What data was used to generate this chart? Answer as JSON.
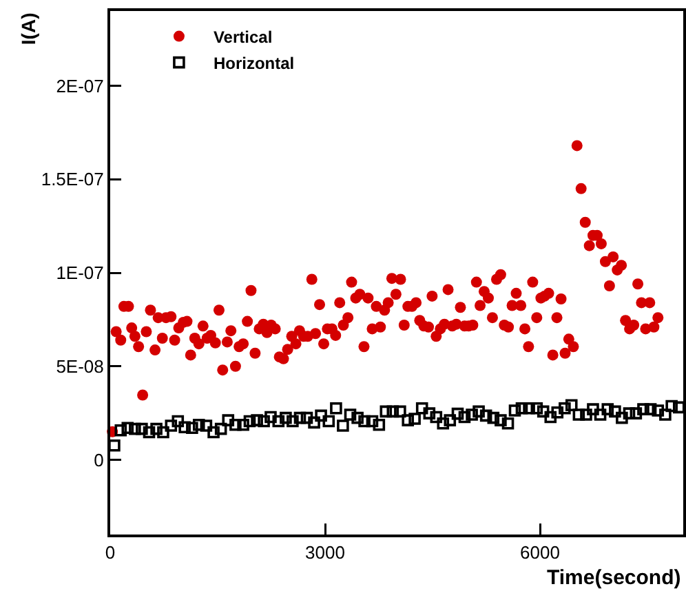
{
  "chart_data": {
    "type": "scatter",
    "xlabel": "Time(second)",
    "ylabel": "I(A)",
    "xlim": [
      0,
      8000
    ],
    "xticks": [
      0,
      3000,
      6000
    ],
    "ylim": [
      -4e-08,
      2.4e-07
    ],
    "yticks": [
      {
        "value": -4e-08,
        "label": null
      },
      0,
      {
        "value": 5e-08,
        "label": "5E-08"
      },
      {
        "value": 1e-07,
        "label": "1E-07"
      },
      {
        "value": 1.5e-07,
        "label": "1.5E-07"
      },
      {
        "value": 2e-07,
        "label": "2E-07"
      }
    ],
    "grid": false,
    "legend": "top left",
    "series": [
      {
        "name": "Vertical",
        "color": "#d40000",
        "marker": "circle",
        "x": [
          30,
          83,
          147,
          191,
          255,
          300,
          345,
          396,
          453,
          504,
          562,
          626,
          670,
          728,
          779,
          849,
          900,
          957,
          1021,
          1072,
          1123,
          1181,
          1238,
          1296,
          1353,
          1404,
          1468,
          1519,
          1570,
          1634,
          1685,
          1749,
          1800,
          1857,
          1915,
          1966,
          2023,
          2081,
          2138,
          2189,
          2247,
          2304,
          2362,
          2419,
          2477,
          2534,
          2592,
          2643,
          2700,
          2758,
          2815,
          2866,
          2923,
          2981,
          3032,
          3096,
          3147,
          3204,
          3255,
          3319,
          3370,
          3428,
          3485,
          3543,
          3600,
          3658,
          3715,
          3772,
          3830,
          3881,
          3932,
          3989,
          4053,
          4104,
          4156,
          4213,
          4270,
          4321,
          4379,
          4443,
          4494,
          4551,
          4609,
          4666,
          4717,
          4775,
          4832,
          4889,
          4947,
          5004,
          5062,
          5113,
          5164,
          5221,
          5279,
          5336,
          5394,
          5451,
          5502,
          5559,
          5611,
          5668,
          5732,
          5789,
          5840,
          5898,
          5955,
          6013,
          6064,
          6121,
          6179,
          6236,
          6294,
          6351,
          6402,
          6466,
          6517,
          6574,
          6632,
          6689,
          6740,
          6798,
          6855,
          6913,
          6970,
          7021,
          7079,
          7136,
          7194,
          7251,
          7309,
          7366,
          7417,
          7475,
          7532,
          7590,
          7647
        ],
        "values": [
          1.5e-08,
          6.85e-08,
          6.4e-08,
          8.2e-08,
          8.2e-08,
          7.05e-08,
          6.6e-08,
          6.05e-08,
          3.46e-08,
          6.85e-08,
          8e-08,
          5.87e-08,
          7.6e-08,
          6.5e-08,
          7.6e-08,
          7.65e-08,
          6.4e-08,
          7.05e-08,
          7.35e-08,
          7.4e-08,
          5.6e-08,
          6.5e-08,
          6.2e-08,
          7.15e-08,
          6.5e-08,
          6.65e-08,
          6.25e-08,
          8e-08,
          4.8e-08,
          6.3e-08,
          6.9e-08,
          5e-08,
          6.05e-08,
          6.2e-08,
          7.4e-08,
          9.05e-08,
          5.7e-08,
          7e-08,
          7.25e-08,
          6.8e-08,
          7.2e-08,
          7e-08,
          5.5e-08,
          5.4e-08,
          5.9e-08,
          6.6e-08,
          6.2e-08,
          6.9e-08,
          6.6e-08,
          6.6e-08,
          9.65e-08,
          6.75e-08,
          8.3e-08,
          6.2e-08,
          7e-08,
          7e-08,
          6.65e-08,
          8.4e-08,
          7.2e-08,
          7.6e-08,
          9.5e-08,
          8.65e-08,
          8.85e-08,
          6.05e-08,
          8.65e-08,
          7e-08,
          8.2e-08,
          7.1e-08,
          8e-08,
          8.4e-08,
          9.7e-08,
          8.85e-08,
          9.65e-08,
          7.2e-08,
          8.2e-08,
          8.2e-08,
          8.4e-08,
          7.45e-08,
          7.15e-08,
          7.1e-08,
          8.75e-08,
          6.6e-08,
          7e-08,
          7.25e-08,
          9.1e-08,
          7.15e-08,
          7.25e-08,
          8.15e-08,
          7.15e-08,
          7.15e-08,
          7.2e-08,
          9.5e-08,
          8.25e-08,
          9e-08,
          8.65e-08,
          7.6e-08,
          9.65e-08,
          9.9e-08,
          7.2e-08,
          7.1e-08,
          8.25e-08,
          8.9e-08,
          8.25e-08,
          7e-08,
          6.05e-08,
          9.5e-08,
          7.6e-08,
          8.65e-08,
          8.75e-08,
          8.9e-08,
          5.6e-08,
          7.6e-08,
          8.6e-08,
          5.7e-08,
          6.45e-08,
          6.05e-08,
          1.68e-07,
          1.45e-07,
          1.27e-07,
          1.145e-07,
          1.2e-07,
          1.2e-07,
          1.155e-07,
          1.06e-07,
          9.3e-08,
          1.085e-07,
          1.015e-07,
          1.04e-07,
          7.45e-08,
          7e-08,
          7.2e-08,
          9.4e-08,
          8.4e-08,
          7e-08,
          8.4e-08,
          7.1e-08,
          7.6e-08
        ]
      },
      {
        "name": "Horizontal",
        "color": "#000000",
        "marker": "square",
        "x": [
          57,
          147,
          243,
          345,
          441,
          543,
          645,
          740,
          849,
          945,
          1040,
          1143,
          1238,
          1340,
          1443,
          1545,
          1647,
          1749,
          1857,
          1947,
          2049,
          2145,
          2240,
          2349,
          2451,
          2547,
          2649,
          2745,
          2847,
          2943,
          3051,
          3153,
          3249,
          3351,
          3453,
          3549,
          3658,
          3753,
          3849,
          3945,
          4047,
          4156,
          4251,
          4353,
          4455,
          4551,
          4647,
          4743,
          4851,
          4947,
          5049,
          5145,
          5247,
          5349,
          5451,
          5553,
          5649,
          5745,
          5847,
          5955,
          6045,
          6147,
          6243,
          6345,
          6440,
          6542,
          6644,
          6740,
          6842,
          6945,
          7047,
          7143,
          7245,
          7340,
          7442,
          7544,
          7647,
          7749,
          7838,
          7940
        ],
        "values": [
          7.6e-09,
          1.57e-08,
          1.7e-08,
          1.65e-08,
          1.65e-08,
          1.47e-08,
          1.65e-08,
          1.47e-08,
          1.82e-08,
          2.06e-08,
          1.74e-08,
          1.7e-08,
          1.87e-08,
          1.82e-08,
          1.47e-08,
          1.65e-08,
          2.11e-08,
          1.87e-08,
          1.87e-08,
          2.06e-08,
          2.11e-08,
          2.06e-08,
          2.28e-08,
          2.06e-08,
          2.24e-08,
          2.06e-08,
          2.24e-08,
          2.24e-08,
          1.99e-08,
          2.36e-08,
          2.06e-08,
          2.75e-08,
          1.82e-08,
          2.41e-08,
          2.24e-08,
          2.06e-08,
          2.06e-08,
          1.87e-08,
          2.58e-08,
          2.58e-08,
          2.58e-08,
          2.11e-08,
          2.19e-08,
          2.75e-08,
          2.48e-08,
          2.28e-08,
          1.94e-08,
          2.11e-08,
          2.46e-08,
          2.28e-08,
          2.41e-08,
          2.58e-08,
          2.36e-08,
          2.24e-08,
          2.11e-08,
          1.94e-08,
          2.63e-08,
          2.75e-08,
          2.75e-08,
          2.75e-08,
          2.58e-08,
          2.28e-08,
          2.53e-08,
          2.75e-08,
          2.92e-08,
          2.41e-08,
          2.41e-08,
          2.7e-08,
          2.41e-08,
          2.7e-08,
          2.58e-08,
          2.24e-08,
          2.48e-08,
          2.48e-08,
          2.7e-08,
          2.7e-08,
          2.63e-08,
          2.41e-08,
          2.87e-08,
          2.8e-08
        ]
      }
    ]
  }
}
